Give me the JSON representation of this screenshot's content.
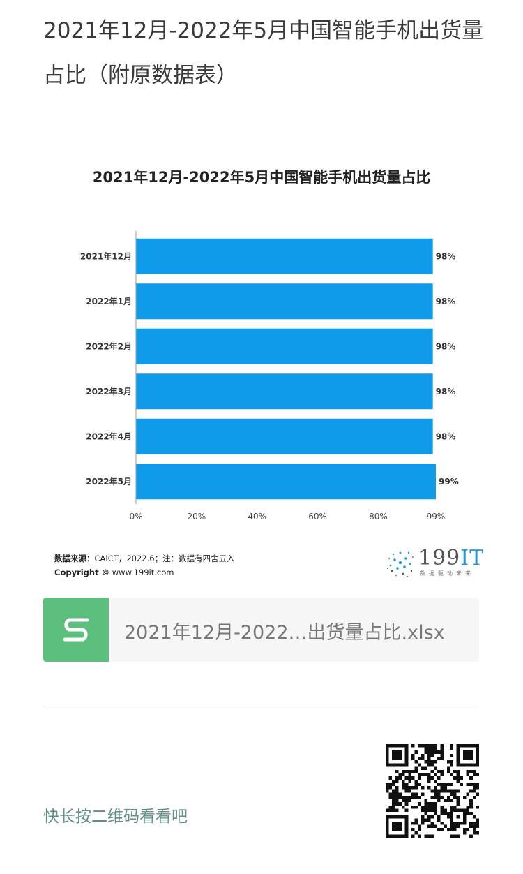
{
  "article": {
    "title": "2021年12月-2022年5月中国智能手机出货量占比（附原数据表）"
  },
  "chart_data": {
    "type": "bar",
    "orientation": "horizontal",
    "title": "2021年12月-2022年5月中国智能手机出货量占比",
    "categories": [
      "2021年12月",
      "2022年1月",
      "2022年2月",
      "2022年3月",
      "2022年4月",
      "2022年5月"
    ],
    "values": [
      98,
      98,
      98,
      98,
      98,
      99
    ],
    "value_labels": [
      "98%",
      "98%",
      "98%",
      "98%",
      "98%",
      "99%"
    ],
    "x_ticks": [
      "0%",
      "20%",
      "40%",
      "60%",
      "80%",
      "99%"
    ],
    "x_tick_values": [
      0,
      20,
      40,
      60,
      80,
      99
    ],
    "xlim": [
      0,
      99
    ],
    "bar_color": "#0f9be9",
    "grid": false
  },
  "source": {
    "label": "数据来源：",
    "text": "CAICT，2022.6；注：数据有四舍五入",
    "copyright_label": "Copyright ©",
    "copyright_site": "www.199it.com"
  },
  "logo": {
    "number": "199",
    "suffix": "IT",
    "tagline": "数据驱动未来"
  },
  "attachment": {
    "icon": "spreadsheet-s-icon",
    "file_name": "2021年12月-2022…出货量占比.xlsx",
    "icon_color": "#5cbf7e"
  },
  "footer": {
    "qr_hint": "快长按二维码看看吧"
  }
}
